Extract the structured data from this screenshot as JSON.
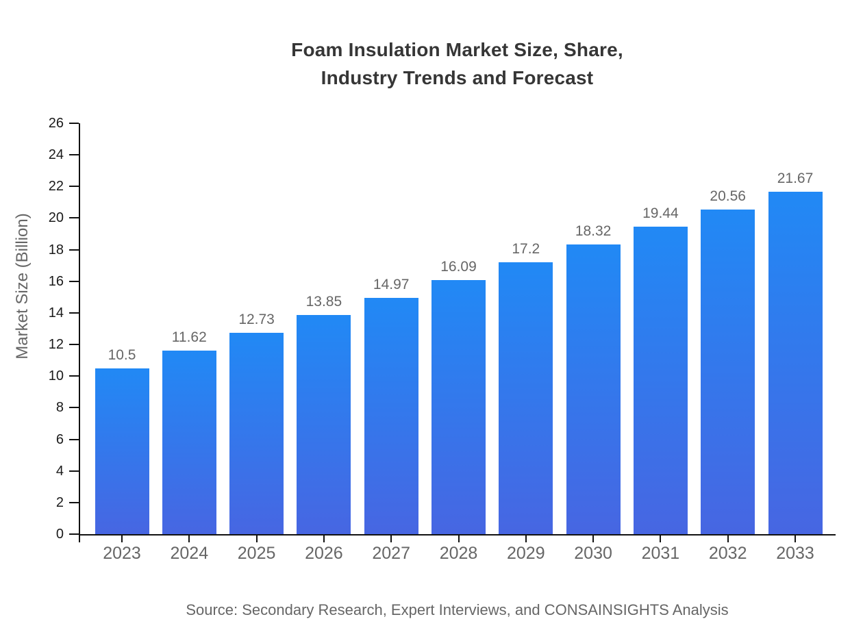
{
  "title": {
    "line1": "Foam Insulation Market Size, Share,",
    "line2": "Industry Trends and Forecast"
  },
  "source_note": "Source: Secondary Research, Expert Interviews, and CONSAINSIGHTS Analysis",
  "colors": {
    "bar_top": "#2189f5",
    "bar_bottom": "#4766e2",
    "axis": "#111111",
    "ytick_text": "#1a1a1a",
    "gray_text": "#666666",
    "title_text": "#363636"
  },
  "chart_data": {
    "type": "bar",
    "title": "Foam Insulation Market Size, Share, Industry Trends and Forecast",
    "xlabel": "",
    "ylabel": "Market Size (Billion)",
    "categories": [
      "2023",
      "2024",
      "2025",
      "2026",
      "2027",
      "2028",
      "2029",
      "2030",
      "2031",
      "2032",
      "2033"
    ],
    "values": [
      10.5,
      11.62,
      12.73,
      13.85,
      14.97,
      16.09,
      17.2,
      18.32,
      19.44,
      20.56,
      21.67
    ],
    "value_labels": [
      "10.5",
      "11.62",
      "12.73",
      "13.85",
      "14.97",
      "16.09",
      "17.2",
      "18.32",
      "19.44",
      "20.56",
      "21.67"
    ],
    "ylim": [
      0,
      26
    ],
    "ytick_step": 2,
    "grid": false,
    "legend_position": "none",
    "bar_gradient": [
      "#2189f5",
      "#4766e2"
    ]
  }
}
